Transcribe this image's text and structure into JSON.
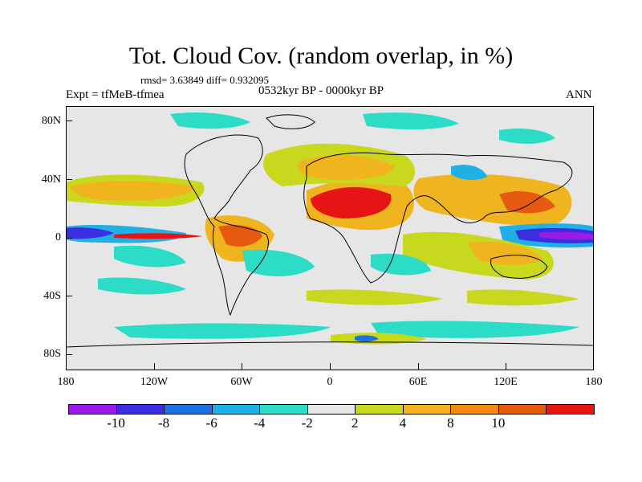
{
  "header": {
    "title": "Tot. Cloud Cov. (random overlap, in %)",
    "stats": "rmsd= 3.63849 diff= 0.932095",
    "experiment": "Expt = tfMeB-tfmea",
    "period": "0532kyr BP - 0000kyr BP",
    "season": "ANN"
  },
  "map_axes": {
    "lon_labels": [
      "180",
      "120W",
      "60W",
      "0",
      "60E",
      "120E",
      "180"
    ],
    "lat_labels": [
      "80N",
      "40N",
      "0",
      "40S",
      "80S"
    ]
  },
  "colorbar": {
    "levels": [
      "-10",
      "-8",
      "-6",
      "-4",
      "-2",
      "2",
      "4",
      "8",
      "10"
    ],
    "colors": [
      "#9a1ae6",
      "#3a2ee0",
      "#1e6fe0",
      "#1fb0e6",
      "#2ddcc6",
      "#e6e6e6",
      "#c8d81e",
      "#f0b41e",
      "#f08a10",
      "#e65a10",
      "#e61414"
    ]
  },
  "colors": {
    "land_outline": "#000000",
    "background": "#e6e6e6"
  }
}
